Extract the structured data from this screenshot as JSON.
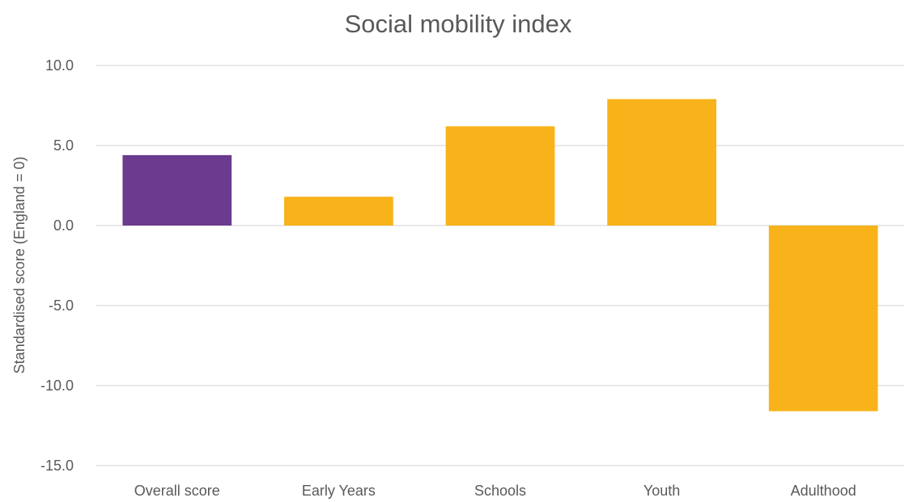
{
  "chart_data": {
    "type": "bar",
    "title": "Social mobility index",
    "xlabel": "",
    "ylabel": "Standardised score (England = 0)",
    "categories": [
      "Overall score",
      "Early Years",
      "Schools",
      "Youth",
      "Adulthood"
    ],
    "values": [
      4.4,
      1.8,
      6.2,
      7.9,
      -11.6
    ],
    "bar_colors": [
      "#6a3b8e",
      "#f8b31a",
      "#f8b31a",
      "#f8b31a",
      "#f8b31a"
    ],
    "ylim": [
      -15,
      10
    ],
    "yticks": [
      "10.0",
      "5.0",
      "0.0",
      "-5.0",
      "-10.0",
      "-15.0"
    ],
    "ytick_values": [
      10,
      5,
      0,
      -5,
      -10,
      -15
    ],
    "grid": true,
    "legend": "none"
  }
}
